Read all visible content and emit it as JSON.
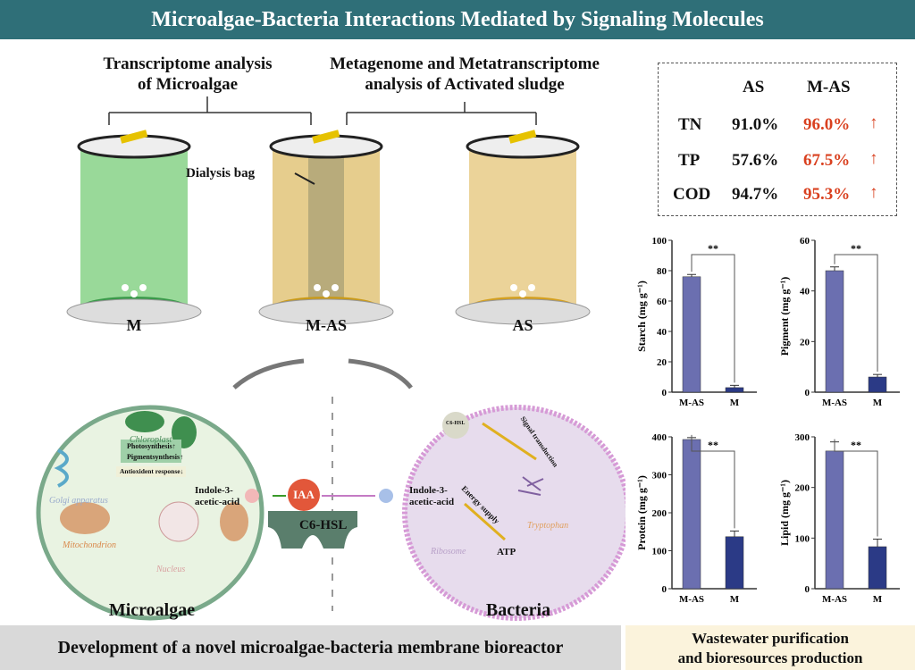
{
  "title": "Microalgae-Bacteria Interactions Mediated by Signaling Molecules",
  "headers": {
    "left_line1": "Transcriptome analysis",
    "left_line2": "of Microalgae",
    "mid_line1": "Metagenome and Metatranscriptome",
    "mid_line2": "analysis of Activated sludge"
  },
  "reactors": {
    "m": "M",
    "mas": "M-AS",
    "as": "AS",
    "dialysis": "Dialysis bag"
  },
  "removal_table": {
    "col1": "AS",
    "col2": "M-AS",
    "rows": [
      {
        "name": "TN",
        "as": "91.0%",
        "mas": "96.0%",
        "arrow": "↑"
      },
      {
        "name": "TP",
        "as": "57.6%",
        "mas": "67.5%",
        "arrow": "↑"
      },
      {
        "name": "COD",
        "as": "94.7%",
        "mas": "95.3%",
        "arrow": "↑"
      }
    ]
  },
  "cells": {
    "microalgae": "Microalgae",
    "bacteria": "Bacteria",
    "chloroplast": "Chloroplast",
    "photo": "Photosynthesis↑",
    "pigment": "Pigmentsynthesis↑",
    "antiox": "Antioxident response↓",
    "golgi": "Golgi apparatus",
    "mito": "Mitochondrion",
    "nucleus": "Nucleus",
    "iaa_left_1": "Indole-3-",
    "iaa_left_2": "acetic-acid",
    "iaa": "IAA",
    "c6hsl": "C6-HSL",
    "c6hsl_small": "C6-HSL",
    "signal": "Signal transduction",
    "iaa_right_1": "Indole-3-",
    "iaa_right_2": "acetic-acid",
    "energy": "Energy supply",
    "atp": "ATP",
    "ribosome": "Ribosome",
    "tryptophan": "Tryptophan"
  },
  "footer": {
    "left": "Development of a novel microalgae-bacteria membrane bioreactor",
    "right1": "Wastewater purification",
    "right2": "and bioresources production"
  },
  "colors": {
    "title_bg": "#2f6f78",
    "bar1": "#6b6fb0",
    "bar2": "#2b3a86",
    "red": "#d9401f"
  },
  "chart_data": [
    {
      "type": "bar",
      "ylabel": "Starch (mg g⁻¹)",
      "categories": [
        "M-AS",
        "M"
      ],
      "values": [
        76,
        3
      ],
      "errors": [
        1.5,
        1.5
      ],
      "ylim": [
        0,
        100
      ],
      "ticks": [
        0,
        20,
        40,
        60,
        80,
        100
      ],
      "sig": "**"
    },
    {
      "type": "bar",
      "ylabel": "Pigment (mg g⁻¹)",
      "categories": [
        "M-AS",
        "M"
      ],
      "values": [
        48,
        6
      ],
      "errors": [
        1.5,
        1
      ],
      "ylim": [
        0,
        60
      ],
      "ticks": [
        0,
        20,
        40,
        60
      ],
      "sig": "**"
    },
    {
      "type": "bar",
      "ylabel": "Protein (mg g⁻¹)",
      "categories": [
        "M-AS",
        "M"
      ],
      "values": [
        393,
        137
      ],
      "errors": [
        5,
        15
      ],
      "ylim": [
        0,
        400
      ],
      "ticks": [
        0,
        100,
        200,
        300,
        400
      ],
      "sig": "**"
    },
    {
      "type": "bar",
      "ylabel": "Lipid (mg g⁻¹)",
      "categories": [
        "M-AS",
        "M"
      ],
      "values": [
        272,
        83
      ],
      "errors": [
        18,
        15
      ],
      "ylim": [
        0,
        300
      ],
      "ticks": [
        0,
        100,
        200,
        300
      ],
      "sig": "**"
    }
  ]
}
